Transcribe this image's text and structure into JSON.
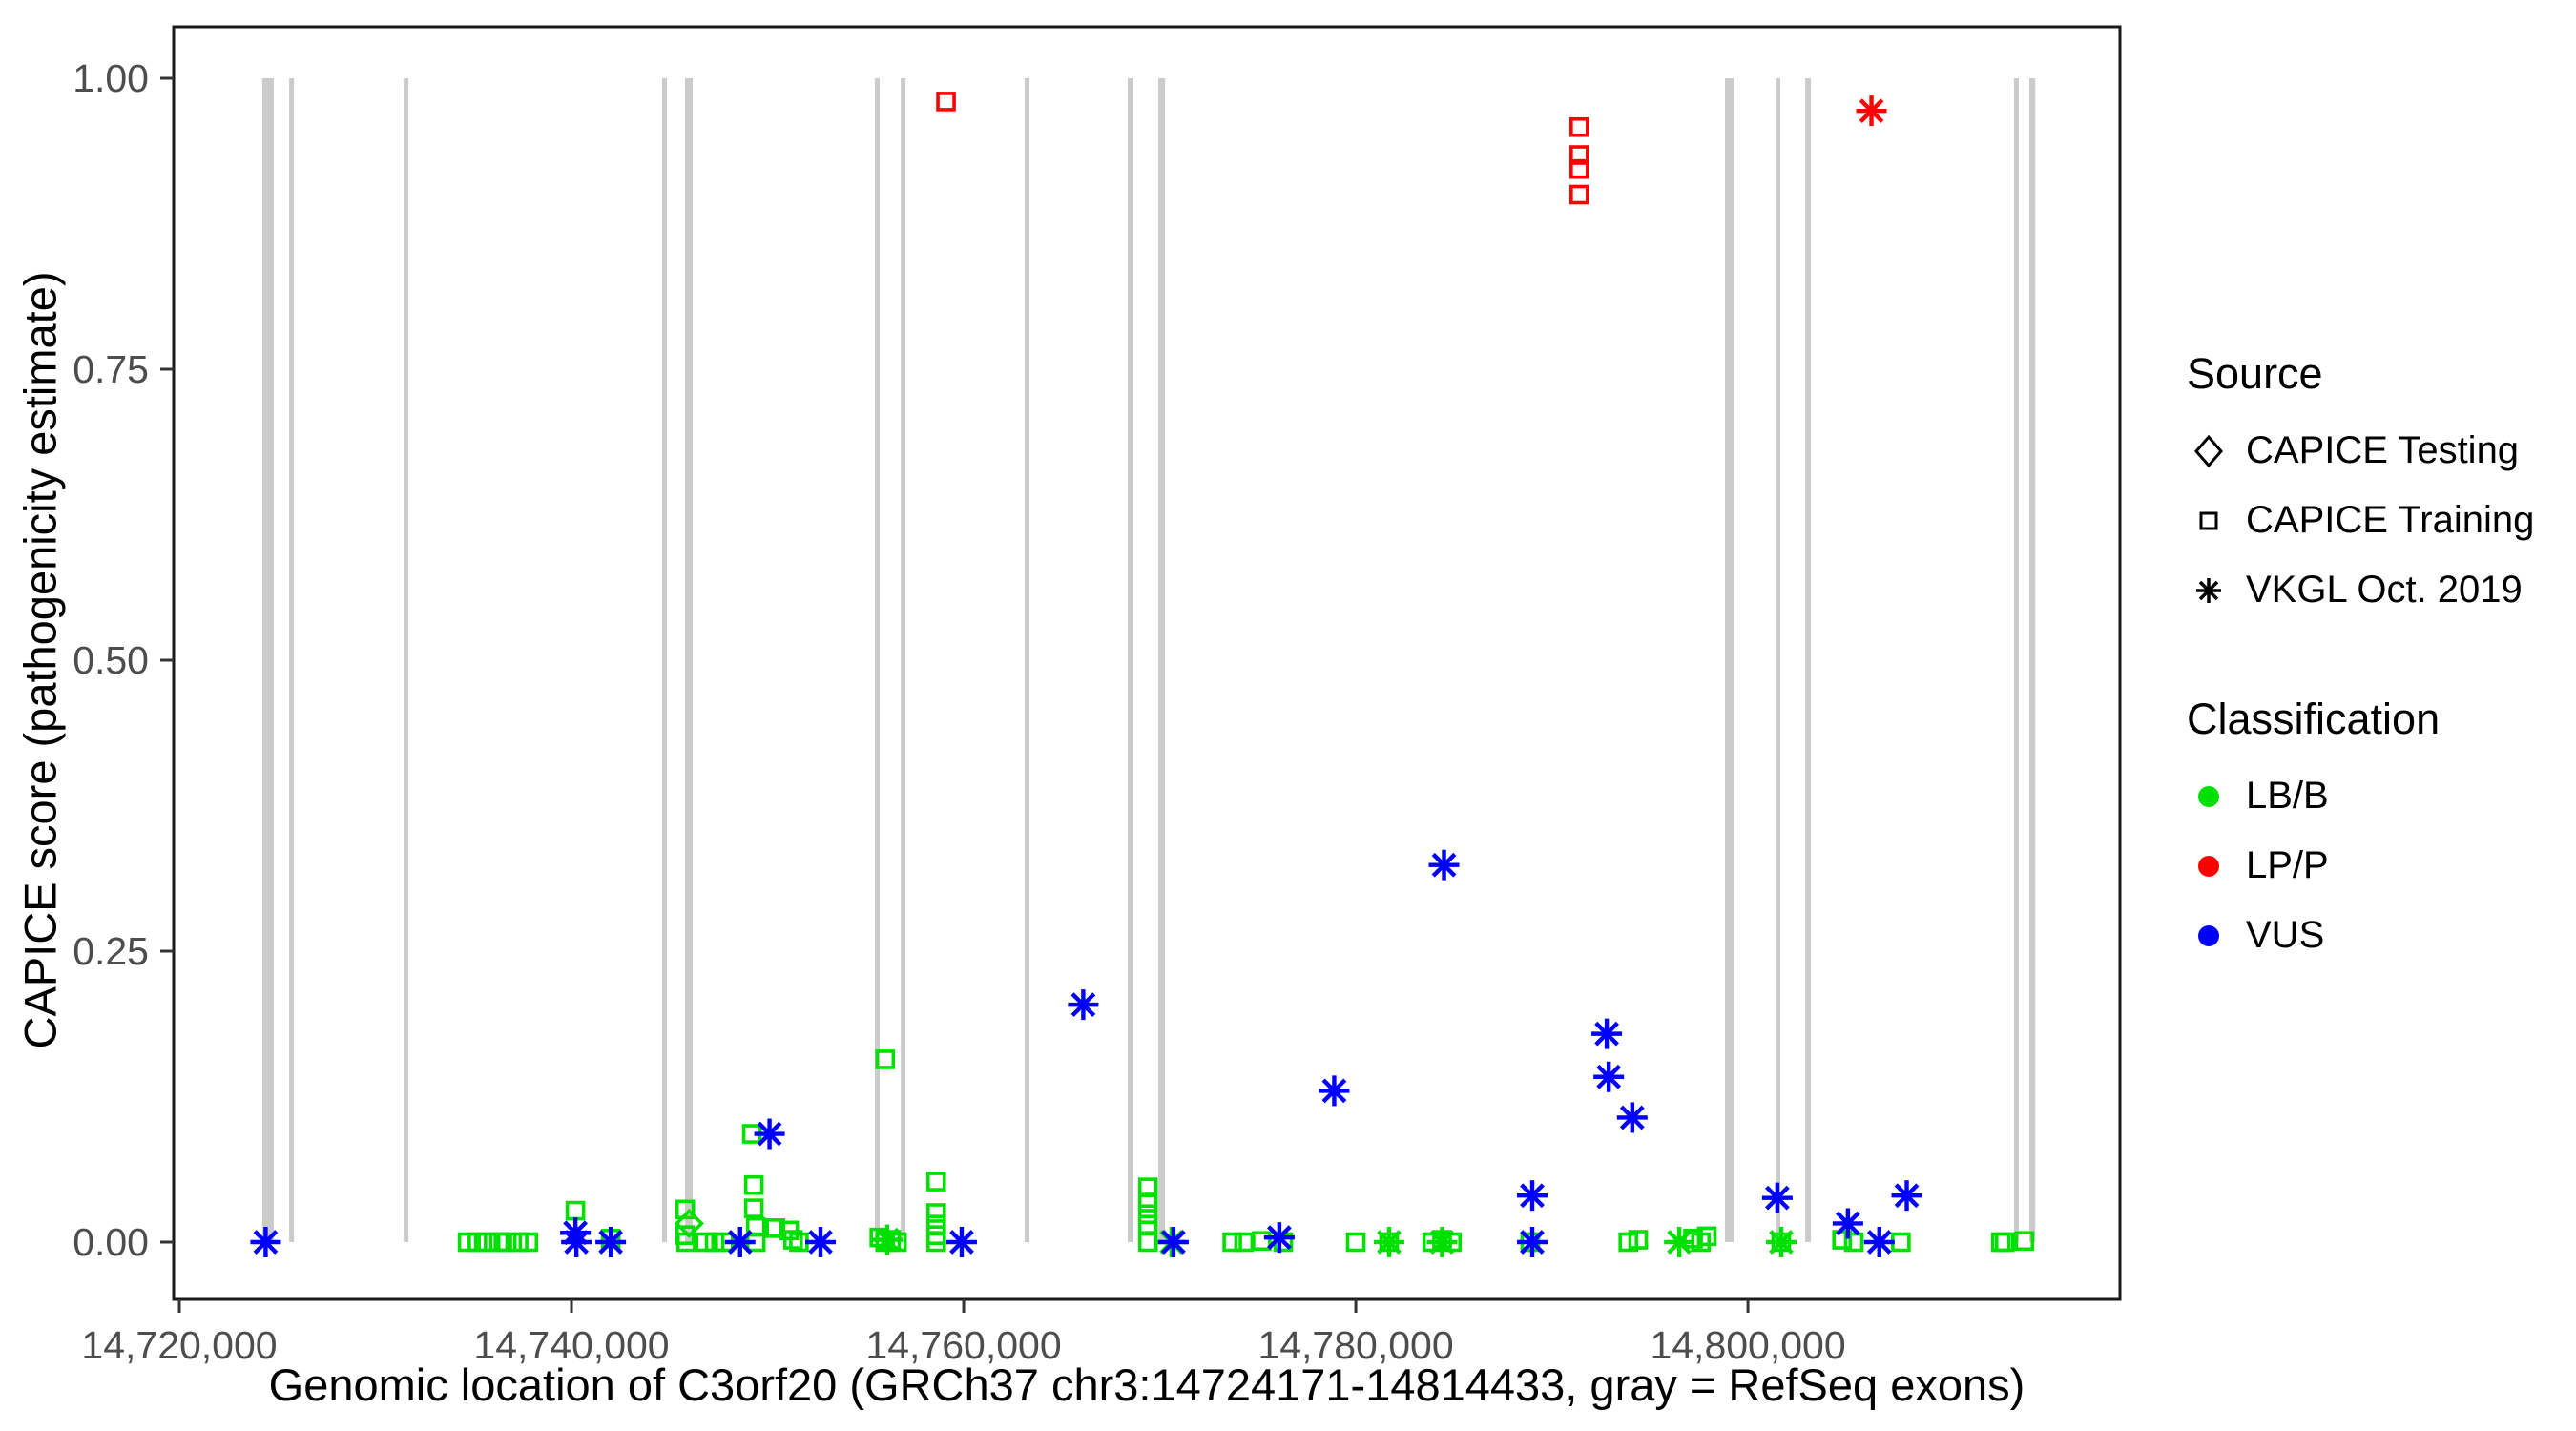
{
  "colors": {
    "classification": {
      "LB/B": "#00E000",
      "LP/P": "#FF0000",
      "VUS": "#0000FF"
    },
    "exon_gray": "#CBCBCB",
    "axis_text": "#4D4D4D",
    "panel_border": "#1A1A1A"
  },
  "legend": {
    "source": {
      "title": "Source",
      "items": [
        {
          "label": "CAPICE Testing",
          "marker": "diamond"
        },
        {
          "label": "CAPICE Training",
          "marker": "square"
        },
        {
          "label": "VKGL Oct. 2019",
          "marker": "asterisk"
        }
      ]
    },
    "classification": {
      "title": "Classification",
      "items": [
        {
          "label": "LB/B",
          "color": "#00E000"
        },
        {
          "label": "LP/P",
          "color": "#FF0000"
        },
        {
          "label": "VUS",
          "color": "#0000FF"
        }
      ]
    }
  },
  "chart_data": {
    "type": "scatter",
    "title": "",
    "xlabel": "Genomic location of C3orf20 (GRCh37 chr3:14724171-14814433, gray = RefSeq exons)",
    "ylabel": "CAPICE score (pathogenicity estimate)",
    "xlim": [
      14719708,
      14818974
    ],
    "ylim": [
      -0.05,
      1.04
    ],
    "grid": false,
    "legend_position": "right",
    "x_ticks": {
      "values": [
        14720000,
        14740000,
        14760000,
        14780000,
        14800000
      ],
      "labels": [
        "14,720,000",
        "14,740,000",
        "14,760,000",
        "14,780,000",
        "14,800,000"
      ]
    },
    "y_ticks": {
      "values": [
        0,
        0.25,
        0.5,
        0.75,
        1
      ],
      "labels": [
        "0.00",
        "0.25",
        "0.50",
        "0.75",
        "1.00"
      ]
    },
    "exons_note": "gray = RefSeq exons, drawn spanning score 0 to 1",
    "exons": [
      [
        14724230,
        14724820
      ],
      [
        14725600,
        14725840
      ],
      [
        14731440,
        14731680
      ],
      [
        14744620,
        14744820
      ],
      [
        14745790,
        14746180
      ],
      [
        14755470,
        14755720
      ],
      [
        14756790,
        14756980
      ],
      [
        14763110,
        14763360
      ],
      [
        14768370,
        14768660
      ],
      [
        14769930,
        14770270
      ],
      [
        14798830,
        14799270
      ],
      [
        14801410,
        14801650
      ],
      [
        14802920,
        14803210
      ],
      [
        14813570,
        14813820
      ],
      [
        14814350,
        14814650
      ]
    ],
    "series": [
      {
        "name": "CAPICE Testing",
        "marker": "diamond",
        "points": [
          [
            14746000,
            0.016,
            "LB/B"
          ]
        ]
      },
      {
        "name": "CAPICE Training",
        "marker": "square",
        "points": [
          [
            14734700,
            0.0,
            "LB/B"
          ],
          [
            14735200,
            0.0,
            "LB/B"
          ],
          [
            14735700,
            0.0,
            "LB/B"
          ],
          [
            14736300,
            0.0,
            "LB/B"
          ],
          [
            14736700,
            0.0,
            "LB/B"
          ],
          [
            14737300,
            0.0,
            "LB/B"
          ],
          [
            14737800,
            0.0,
            "LB/B"
          ],
          [
            14740200,
            0.027,
            "LB/B"
          ],
          [
            14742000,
            0.003,
            "LB/B"
          ],
          [
            14745800,
            0.028,
            "LB/B"
          ],
          [
            14745800,
            0.006,
            "LB/B"
          ],
          [
            14745850,
            0.0,
            "LB/B"
          ],
          [
            14746800,
            0.0,
            "LB/B"
          ],
          [
            14747300,
            0.0,
            "LB/B"
          ],
          [
            14747800,
            0.0,
            "LB/B"
          ],
          [
            14749200,
            0.093,
            "LB/B"
          ],
          [
            14749300,
            0.049,
            "LB/B"
          ],
          [
            14749300,
            0.029,
            "LB/B"
          ],
          [
            14749400,
            0.013,
            "LB/B"
          ],
          [
            14750400,
            0.012,
            "LB/B"
          ],
          [
            14749400,
            0.0,
            "LB/B"
          ],
          [
            14751100,
            0.01,
            "LB/B"
          ],
          [
            14751300,
            0.002,
            "LB/B"
          ],
          [
            14751600,
            0.0,
            "LB/B"
          ],
          [
            14755700,
            0.004,
            "LB/B"
          ],
          [
            14756000,
            0.157,
            "LB/B"
          ],
          [
            14756000,
            0.0,
            "LB/B"
          ],
          [
            14756300,
            0.002,
            "LB/B"
          ],
          [
            14756600,
            0.0,
            "LB/B"
          ],
          [
            14758600,
            0.052,
            "LB/B"
          ],
          [
            14758600,
            0.025,
            "LB/B"
          ],
          [
            14758600,
            0.015,
            "LB/B"
          ],
          [
            14758600,
            0.006,
            "LB/B"
          ],
          [
            14758600,
            0.0,
            "LB/B"
          ],
          [
            14759100,
            0.98,
            "LP/P"
          ],
          [
            14769400,
            0.047,
            "LB/B"
          ],
          [
            14769400,
            0.034,
            "LB/B"
          ],
          [
            14769400,
            0.024,
            "LB/B"
          ],
          [
            14769400,
            0.015,
            "LB/B"
          ],
          [
            14769400,
            0.0,
            "LB/B"
          ],
          [
            14773700,
            0.0,
            "LB/B"
          ],
          [
            14774300,
            0.0,
            "LB/B"
          ],
          [
            14775200,
            0.001,
            "LB/B"
          ],
          [
            14776300,
            0.0,
            "LB/B"
          ],
          [
            14780000,
            0.0,
            "LB/B"
          ],
          [
            14781700,
            0.0,
            "LB/B"
          ],
          [
            14783900,
            0.0,
            "LB/B"
          ],
          [
            14784400,
            0.002,
            "LB/B"
          ],
          [
            14784900,
            0.0,
            "LB/B"
          ],
          [
            14788900,
            0.0,
            "LB/B"
          ],
          [
            14791400,
            0.958,
            "LP/P"
          ],
          [
            14791400,
            0.934,
            "LP/P"
          ],
          [
            14791400,
            0.922,
            "LP/P"
          ],
          [
            14791400,
            0.9,
            "LP/P"
          ],
          [
            14793900,
            0.0,
            "LB/B"
          ],
          [
            14794400,
            0.002,
            "LB/B"
          ],
          [
            14797200,
            0.003,
            "LB/B"
          ],
          [
            14797600,
            0.0,
            "LB/B"
          ],
          [
            14797900,
            0.005,
            "LB/B"
          ],
          [
            14801700,
            0.0,
            "LB/B"
          ],
          [
            14804800,
            0.002,
            "LB/B"
          ],
          [
            14805400,
            0.0,
            "LB/B"
          ],
          [
            14807800,
            0.0,
            "LB/B"
          ],
          [
            14812900,
            0.0,
            "LB/B"
          ],
          [
            14813100,
            0.0,
            "LB/B"
          ],
          [
            14814100,
            0.001,
            "LB/B"
          ]
        ]
      },
      {
        "name": "VKGL Oct. 2019",
        "marker": "asterisk",
        "points": [
          [
            14724400,
            0.0,
            "VUS"
          ],
          [
            14740200,
            0.008,
            "VUS"
          ],
          [
            14740250,
            0.0,
            "VUS"
          ],
          [
            14742000,
            0.0,
            "VUS"
          ],
          [
            14748600,
            0.0,
            "VUS"
          ],
          [
            14750100,
            0.093,
            "VUS"
          ],
          [
            14752700,
            0.0,
            "VUS"
          ],
          [
            14756100,
            0.002,
            "LB/B"
          ],
          [
            14759900,
            0.0,
            "VUS"
          ],
          [
            14766100,
            0.204,
            "VUS"
          ],
          [
            14770600,
            0.0,
            "LB/B"
          ],
          [
            14770700,
            0.0,
            "VUS"
          ],
          [
            14776100,
            0.004,
            "VUS"
          ],
          [
            14778900,
            0.13,
            "VUS"
          ],
          [
            14781700,
            0.0,
            "LB/B"
          ],
          [
            14784400,
            0.0,
            "LB/B"
          ],
          [
            14784500,
            0.324,
            "VUS"
          ],
          [
            14789000,
            0.04,
            "VUS"
          ],
          [
            14789000,
            0.0,
            "VUS"
          ],
          [
            14792800,
            0.179,
            "VUS"
          ],
          [
            14792900,
            0.142,
            "VUS"
          ],
          [
            14794100,
            0.107,
            "VUS"
          ],
          [
            14796500,
            0.0,
            "LB/B"
          ],
          [
            14801500,
            0.038,
            "VUS"
          ],
          [
            14801700,
            0.0,
            "LB/B"
          ],
          [
            14805100,
            0.016,
            "VUS"
          ],
          [
            14806300,
            0.972,
            "LP/P"
          ],
          [
            14806700,
            0.0,
            "VUS"
          ],
          [
            14808100,
            0.04,
            "VUS"
          ]
        ]
      }
    ]
  }
}
